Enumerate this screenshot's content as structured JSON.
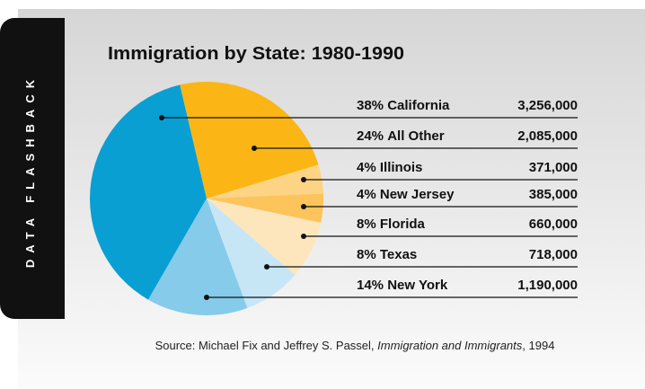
{
  "chart_data": {
    "type": "pie",
    "side_label": "DATA FLASHBACK",
    "title": "Immigration by State: 1980-1990",
    "categories": [
      "California",
      "All Other",
      "Illinois",
      "New Jersey",
      "Florida",
      "Texas",
      "New York"
    ],
    "values": [
      38,
      24,
      4,
      4,
      8,
      8,
      14
    ],
    "value_labels": [
      "38%",
      "24%",
      "4%",
      "4%",
      "8%",
      "8%",
      "14%"
    ],
    "amounts": [
      3256000,
      2085000,
      371000,
      385000,
      660000,
      718000,
      1190000
    ],
    "amount_labels": [
      "3,256,000",
      "2,085,000",
      "371,000",
      "385,000",
      "660,000",
      "718,000",
      "1,190,000"
    ],
    "colors": [
      "#0a9fd3",
      "#fbb615",
      "#fdd484",
      "#fcc45a",
      "#fde6bc",
      "#c6e6f6",
      "#86cbea"
    ],
    "source": [
      "Source: Michael Fix and Jeffrey S. Passel, ",
      "Immigration and Immigrants",
      ", 1994"
    ]
  }
}
